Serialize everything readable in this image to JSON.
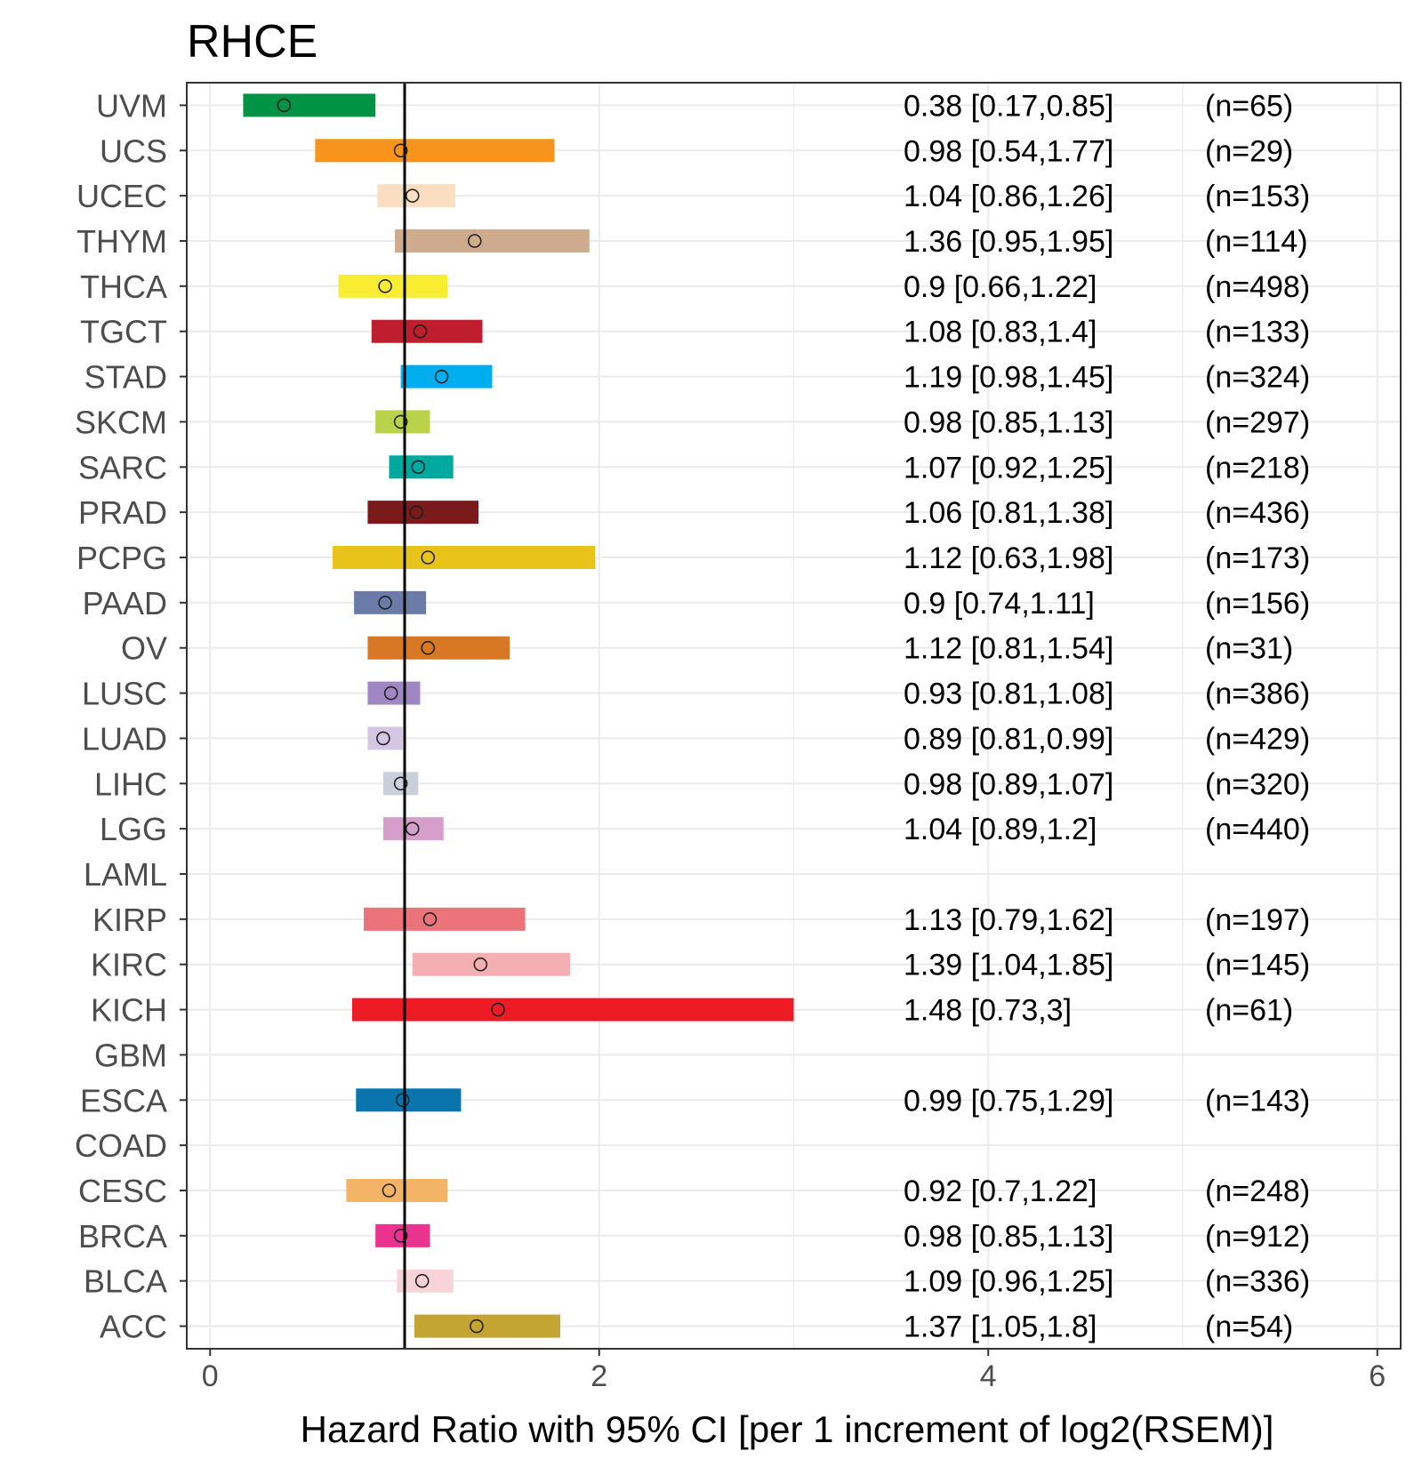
{
  "chart_data": {
    "type": "forest",
    "title": "RHCE",
    "xlabel": "Hazard Ratio with 95% CI [per 1 increment of log2(RSEM)]",
    "ylabel": "",
    "xlim": [
      -0.12,
      6.12
    ],
    "xticks": [
      0,
      2,
      4,
      6
    ],
    "reference_line": 1,
    "grid": true,
    "rows": [
      {
        "label": "UVM",
        "hr": 0.38,
        "lo": 0.17,
        "hi": 0.85,
        "ci_text": "0.38 [0.17,0.85]",
        "n_text": "(n=65)",
        "color": "#009245"
      },
      {
        "label": "UCS",
        "hr": 0.98,
        "lo": 0.54,
        "hi": 1.77,
        "ci_text": "0.98 [0.54,1.77]",
        "n_text": "(n=29)",
        "color": "#F7941D"
      },
      {
        "label": "UCEC",
        "hr": 1.04,
        "lo": 0.86,
        "hi": 1.26,
        "ci_text": "1.04 [0.86,1.26]",
        "n_text": "(n=153)",
        "color": "#FBDEC2"
      },
      {
        "label": "THYM",
        "hr": 1.36,
        "lo": 0.95,
        "hi": 1.95,
        "ci_text": "1.36 [0.95,1.95]",
        "n_text": "(n=114)",
        "color": "#CFAB8E"
      },
      {
        "label": "THCA",
        "hr": 0.9,
        "lo": 0.66,
        "hi": 1.22,
        "ci_text": "0.9 [0.66,1.22]",
        "n_text": "(n=498)",
        "color": "#F9ED32"
      },
      {
        "label": "TGCT",
        "hr": 1.08,
        "lo": 0.83,
        "hi": 1.4,
        "ci_text": "1.08 [0.83,1.4]",
        "n_text": "(n=133)",
        "color": "#BE1E2D"
      },
      {
        "label": "STAD",
        "hr": 1.19,
        "lo": 0.98,
        "hi": 1.45,
        "ci_text": "1.19 [0.98,1.45]",
        "n_text": "(n=324)",
        "color": "#00AEEF"
      },
      {
        "label": "SKCM",
        "hr": 0.98,
        "lo": 0.85,
        "hi": 1.13,
        "ci_text": "0.98 [0.85,1.13]",
        "n_text": "(n=297)",
        "color": "#B9D24A"
      },
      {
        "label": "SARC",
        "hr": 1.07,
        "lo": 0.92,
        "hi": 1.25,
        "ci_text": "1.07 [0.92,1.25]",
        "n_text": "(n=218)",
        "color": "#00A99D"
      },
      {
        "label": "PRAD",
        "hr": 1.06,
        "lo": 0.81,
        "hi": 1.38,
        "ci_text": "1.06 [0.81,1.38]",
        "n_text": "(n=436)",
        "color": "#7A1B1B"
      },
      {
        "label": "PCPG",
        "hr": 1.12,
        "lo": 0.63,
        "hi": 1.98,
        "ci_text": "1.12 [0.63,1.98]",
        "n_text": "(n=173)",
        "color": "#E8C41B"
      },
      {
        "label": "PAAD",
        "hr": 0.9,
        "lo": 0.74,
        "hi": 1.11,
        "ci_text": "0.9 [0.74,1.11]",
        "n_text": "(n=156)",
        "color": "#6B7BA8"
      },
      {
        "label": "OV",
        "hr": 1.12,
        "lo": 0.81,
        "hi": 1.54,
        "ci_text": "1.12 [0.81,1.54]",
        "n_text": "(n=31)",
        "color": "#D97824"
      },
      {
        "label": "LUSC",
        "hr": 0.93,
        "lo": 0.81,
        "hi": 1.08,
        "ci_text": "0.93 [0.81,1.08]",
        "n_text": "(n=386)",
        "color": "#A086C2"
      },
      {
        "label": "LUAD",
        "hr": 0.89,
        "lo": 0.81,
        "hi": 0.99,
        "ci_text": "0.89 [0.81,0.99]",
        "n_text": "(n=429)",
        "color": "#D5C6E3"
      },
      {
        "label": "LIHC",
        "hr": 0.98,
        "lo": 0.89,
        "hi": 1.07,
        "ci_text": "0.98 [0.89,1.07]",
        "n_text": "(n=320)",
        "color": "#CACFDC"
      },
      {
        "label": "LGG",
        "hr": 1.04,
        "lo": 0.89,
        "hi": 1.2,
        "ci_text": "1.04 [0.89,1.2]",
        "n_text": "(n=440)",
        "color": "#D69FCB"
      },
      {
        "label": "LAML",
        "hr": null,
        "lo": null,
        "hi": null,
        "ci_text": "",
        "n_text": "",
        "color": "#000000"
      },
      {
        "label": "KIRP",
        "hr": 1.13,
        "lo": 0.79,
        "hi": 1.62,
        "ci_text": "1.13 [0.79,1.62]",
        "n_text": "(n=197)",
        "color": "#EC737A"
      },
      {
        "label": "KIRC",
        "hr": 1.39,
        "lo": 1.04,
        "hi": 1.85,
        "ci_text": "1.39 [1.04,1.85]",
        "n_text": "(n=145)",
        "color": "#F4AFB3"
      },
      {
        "label": "KICH",
        "hr": 1.48,
        "lo": 0.73,
        "hi": 3,
        "ci_text": "1.48 [0.73,3]",
        "n_text": "(n=61)",
        "color": "#ED1C24"
      },
      {
        "label": "GBM",
        "hr": null,
        "lo": null,
        "hi": null,
        "ci_text": "",
        "n_text": "",
        "color": "#000000"
      },
      {
        "label": "ESCA",
        "hr": 0.99,
        "lo": 0.75,
        "hi": 1.29,
        "ci_text": "0.99 [0.75,1.29]",
        "n_text": "(n=143)",
        "color": "#0A75AD"
      },
      {
        "label": "COAD",
        "hr": null,
        "lo": null,
        "hi": null,
        "ci_text": "",
        "n_text": "",
        "color": "#000000"
      },
      {
        "label": "CESC",
        "hr": 0.92,
        "lo": 0.7,
        "hi": 1.22,
        "ci_text": "0.92 [0.7,1.22]",
        "n_text": "(n=248)",
        "color": "#F3B467"
      },
      {
        "label": "BRCA",
        "hr": 0.98,
        "lo": 0.85,
        "hi": 1.13,
        "ci_text": "0.98 [0.85,1.13]",
        "n_text": "(n=912)",
        "color": "#E9338F"
      },
      {
        "label": "BLCA",
        "hr": 1.09,
        "lo": 0.96,
        "hi": 1.25,
        "ci_text": "1.09 [0.96,1.25]",
        "n_text": "(n=336)",
        "color": "#F8D3D8"
      },
      {
        "label": "ACC",
        "hr": 1.37,
        "lo": 1.05,
        "hi": 1.8,
        "ci_text": "1.37 [1.05,1.8]",
        "n_text": "(n=54)",
        "color": "#C4A432"
      }
    ]
  }
}
